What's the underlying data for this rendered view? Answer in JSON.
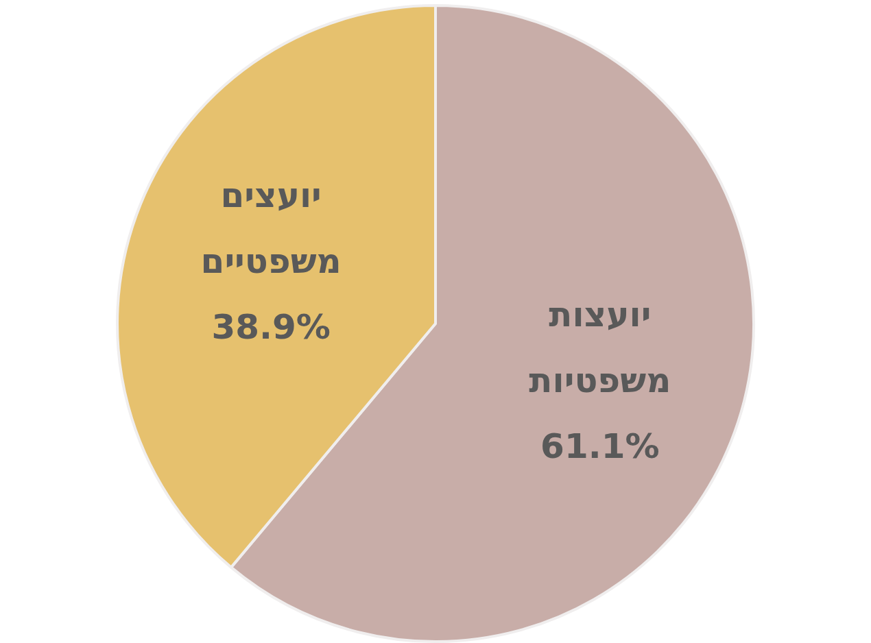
{
  "chart_data": {
    "type": "pie",
    "categories": [
      "יועצות משפטיות",
      "יועצים משפטיים"
    ],
    "values": [
      61.1,
      38.9
    ],
    "colors": [
      "#c8ada8",
      "#e6c16e"
    ],
    "value_labels": [
      "61.1%",
      "38.9%"
    ]
  }
}
